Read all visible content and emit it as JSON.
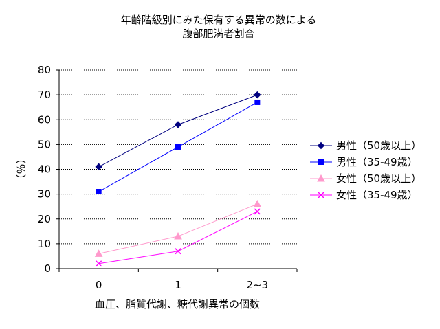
{
  "chart_data": {
    "type": "line",
    "title": [
      "年齢階級別にみた保有する異常の数による",
      "腹部肥満者割合"
    ],
    "xlabel": "血圧、脂質代謝、糖代謝異常の個数",
    "ylabel": "（％）",
    "categories": [
      "0",
      "1",
      "2~3"
    ],
    "ylim": [
      0,
      80
    ],
    "yticks": [
      0,
      10,
      20,
      30,
      40,
      50,
      60,
      70,
      80
    ],
    "grid": "horizontal dotted",
    "legend_position": "right",
    "series": [
      {
        "name": "男性（50歳以上）",
        "values": [
          41,
          58,
          70
        ],
        "color": "#000080",
        "marker": "diamond"
      },
      {
        "name": "男性（35-49歳）",
        "values": [
          31,
          49,
          67
        ],
        "color": "#0000ff",
        "marker": "square"
      },
      {
        "name": "女性（50歳以上）",
        "values": [
          6,
          13,
          26
        ],
        "color": "#ff99cc",
        "marker": "triangle"
      },
      {
        "name": "女性（35-49歳）",
        "values": [
          2,
          7,
          23
        ],
        "color": "#ff00ff",
        "marker": "x"
      }
    ]
  }
}
